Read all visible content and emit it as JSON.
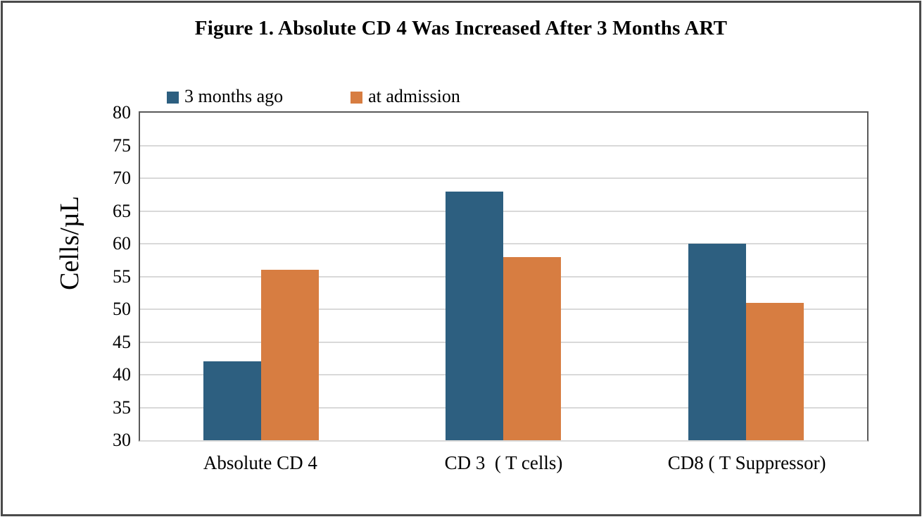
{
  "chart_data": {
    "type": "bar",
    "title": "Figure 1. Absolute CD 4 Was Increased After 3 Months ART",
    "xlabel": "",
    "ylabel": "Cells/µL",
    "categories": [
      "Absolute CD 4",
      "CD 3  ( T cells)",
      "CD8 ( T Suppressor)"
    ],
    "series": [
      {
        "name": "3 months ago",
        "color": "#2d5f80",
        "values": [
          42,
          68,
          60
        ]
      },
      {
        "name": "at admission",
        "color": "#d77d41",
        "values": [
          56,
          58,
          51
        ]
      }
    ],
    "ylim": [
      30,
      80
    ],
    "ytick_step": 5,
    "grid": true,
    "legend_position": "top-left"
  },
  "colors": {
    "outer_border": "#4a4a4a",
    "axis_border": "#595959",
    "gridline": "#d9d9d9",
    "background": "#ffffff",
    "text": "#000000"
  }
}
